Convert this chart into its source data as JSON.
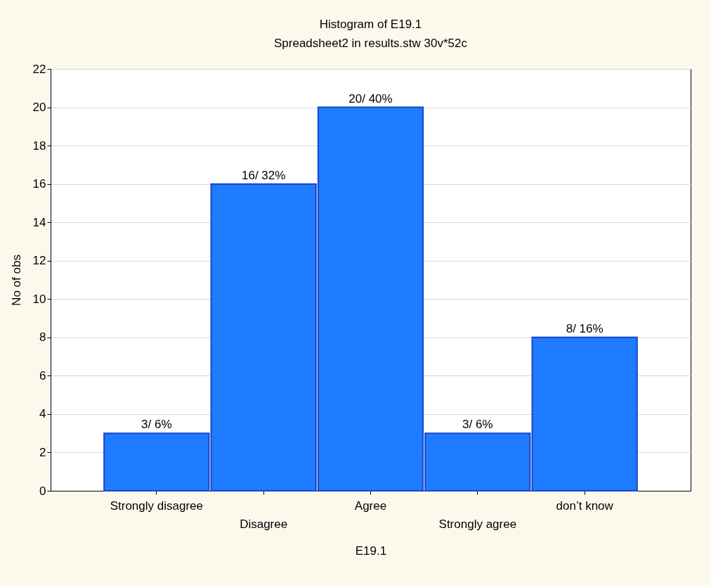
{
  "chart_data": {
    "type": "bar",
    "title": "Histogram of E19.1",
    "subtitle": "Spreadsheet2 in results.stw 30v*52c",
    "xlabel": "E19.1",
    "ylabel": "No of obs",
    "categories": [
      "Strongly disagree",
      "Disagree",
      "Agree",
      "Strongly agree",
      "don’t know"
    ],
    "values": [
      3,
      16,
      20,
      3,
      8
    ],
    "value_labels": [
      "3/ 6%",
      "16/ 32%",
      "20/ 40%",
      "3/ 6%",
      "8/ 16%"
    ],
    "color": "#1f7bff",
    "ylim": [
      0,
      22
    ],
    "yticks": [
      0,
      2,
      4,
      6,
      8,
      10,
      12,
      14,
      16,
      18,
      20,
      22
    ],
    "grid": "y"
  }
}
